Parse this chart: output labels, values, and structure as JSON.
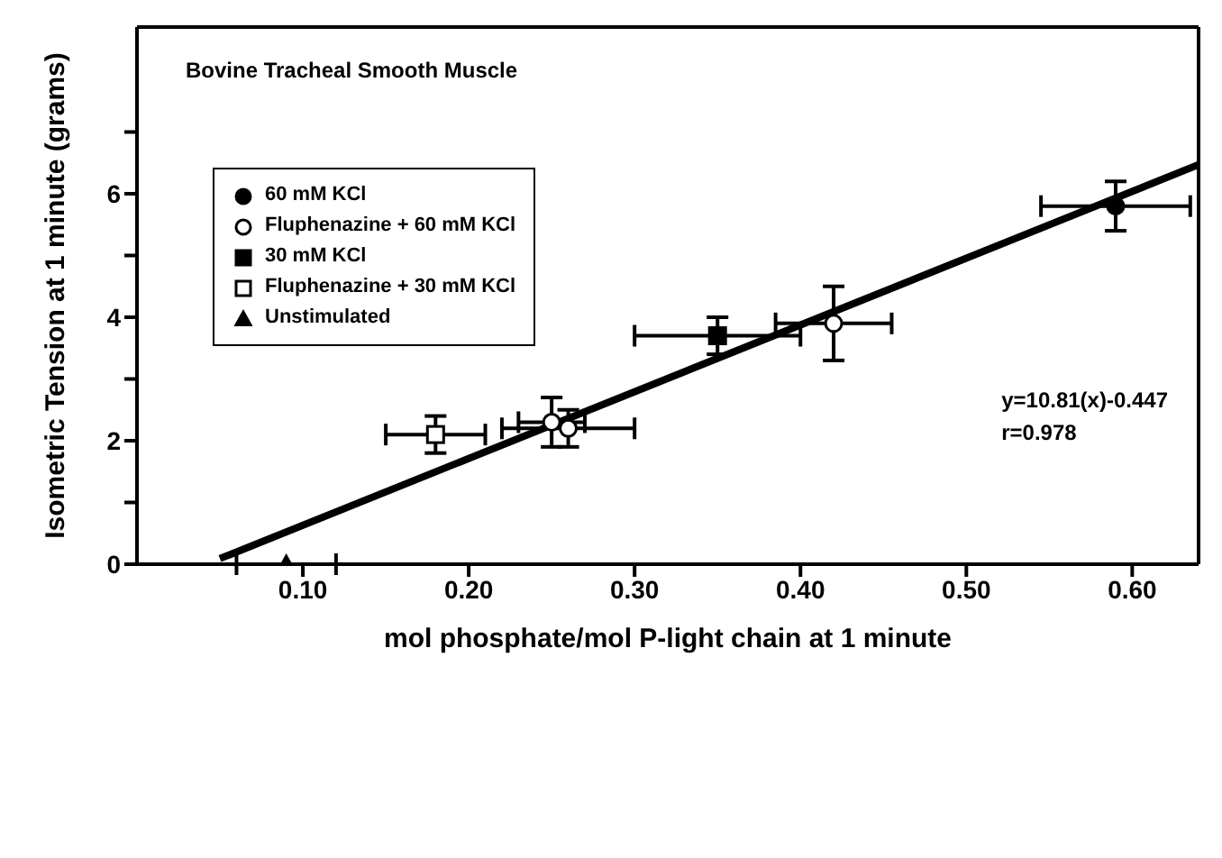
{
  "chart_data": {
    "type": "scatter",
    "title": "Bovine Tracheal Smooth Muscle",
    "xlabel": "mol phosphate/mol P-light chain at 1 minute",
    "ylabel": "Isometric Tension at 1 minute (grams)",
    "annotations": [
      "y=10.81(x)-0.447",
      "r=0.978"
    ],
    "xlim": [
      0,
      0.64
    ],
    "xticks": [
      {
        "value": 0.1,
        "label": "0.10"
      },
      {
        "value": 0.2,
        "label": "0.20"
      },
      {
        "value": 0.3,
        "label": "0.30"
      },
      {
        "value": 0.4,
        "label": "0.40"
      },
      {
        "value": 0.5,
        "label": "0.50"
      },
      {
        "value": 0.6,
        "label": "0.60"
      }
    ],
    "ylim": [
      0,
      8.7
    ],
    "yticks": [
      0,
      {
        "value": 1,
        "label": null
      },
      2,
      {
        "value": 3,
        "label": null
      },
      4,
      {
        "value": 5,
        "label": null
      },
      6,
      {
        "value": 7,
        "label": null
      }
    ],
    "legend": "top left",
    "series": [
      {
        "name": "60 mM KCl",
        "color": "#000000",
        "marker": "circle",
        "x": [
          0.59
        ],
        "values": [
          5.8
        ],
        "errors": [
          0.4
        ],
        "xerrors": [
          0.045
        ]
      },
      {
        "name": "Fluphenazine + 60 mM KCl",
        "color": "#ffffff",
        "marker": "circle",
        "x": [
          0.42,
          0.25,
          0.26
        ],
        "values": [
          3.9,
          2.3,
          2.2
        ],
        "errors": [
          0.6,
          0.4,
          0.3
        ],
        "xerrors": [
          0.035,
          0.02,
          0.04
        ]
      },
      {
        "name": "30 mM KCl",
        "color": "#000000",
        "marker": "square",
        "x": [
          0.35
        ],
        "values": [
          3.7
        ],
        "errors": [
          0.3
        ],
        "xerrors": [
          0.05
        ]
      },
      {
        "name": "Fluphenazine + 30 mM KCl",
        "color": "#ffffff",
        "marker": "square",
        "x": [
          0.18
        ],
        "values": [
          2.1
        ],
        "errors": [
          0.3
        ],
        "xerrors": [
          0.03
        ]
      },
      {
        "name": "Unstimulated",
        "color": "#000000",
        "marker": "triangle",
        "x": [
          0.09
        ],
        "values": [
          0
        ],
        "xerrors": [
          0.03
        ]
      },
      {
        "type": "line",
        "color": "#000000",
        "x": [
          0.05,
          0.64
        ],
        "values": [
          0.09,
          6.47
        ]
      }
    ]
  }
}
